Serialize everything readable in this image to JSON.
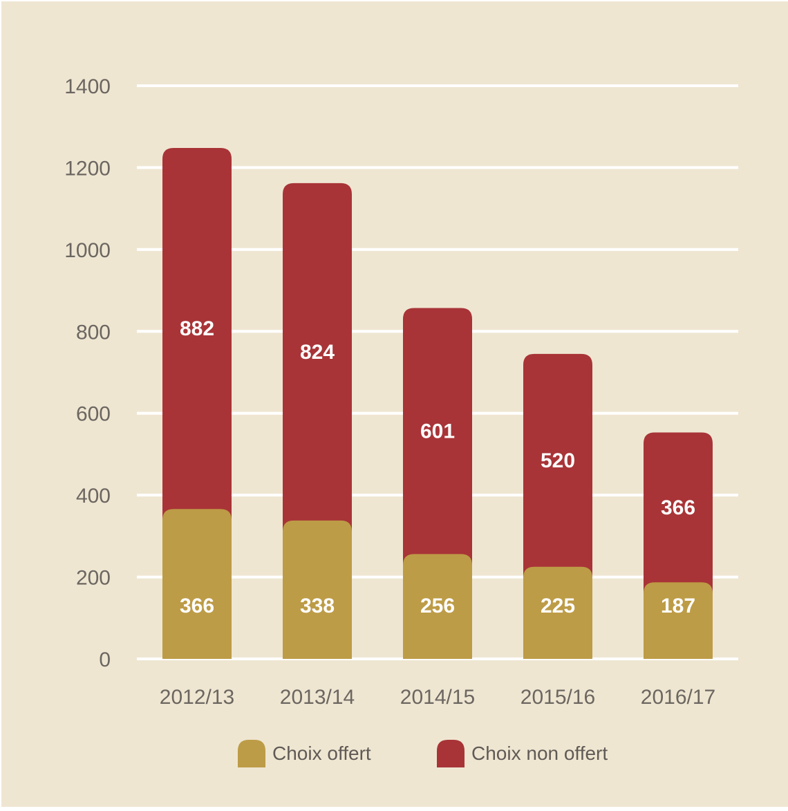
{
  "chart_data": {
    "type": "bar",
    "stacked": true,
    "categories": [
      "2012/13",
      "2013/14",
      "2014/15",
      "2015/16",
      "2016/17"
    ],
    "series": [
      {
        "name": "Choix offert",
        "color": "#bd9c47",
        "values": [
          366,
          338,
          256,
          225,
          187
        ]
      },
      {
        "name": "Choix non offert",
        "color": "#a83437",
        "values": [
          882,
          824,
          601,
          520,
          366
        ]
      }
    ],
    "ylim": [
      0,
      1400
    ],
    "yticks": [
      "0",
      "200",
      "400",
      "600",
      "800",
      "1000",
      "1200",
      "1400"
    ],
    "grid": true,
    "legend_position": "bottom",
    "background": "#efe6d2",
    "gridline_color": "#ffffff",
    "label_color": "#6b6660"
  }
}
